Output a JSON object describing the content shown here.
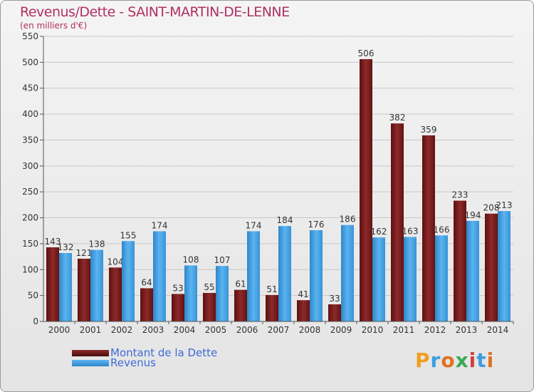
{
  "title": "Revenus/Dette - SAINT-MARTIN-DE-LENNE",
  "subtitle": "(en milliers d'€)",
  "logo": "Proxiti",
  "colors": {
    "dette": "#7a1a1a",
    "revenus": "#3d9ee0",
    "title": "#b03060",
    "legend_text": "#3d6bd6"
  },
  "chart_data": {
    "type": "bar",
    "categories": [
      "2000",
      "2001",
      "2002",
      "2003",
      "2004",
      "2005",
      "2006",
      "2007",
      "2008",
      "2009",
      "2010",
      "2011",
      "2012",
      "2013",
      "2014"
    ],
    "series": [
      {
        "name": "Montant de la Dette",
        "values": [
          143,
          121,
          104,
          64,
          53,
          55,
          61,
          51,
          41,
          33,
          506,
          382,
          359,
          233,
          208
        ]
      },
      {
        "name": "Revenus",
        "values": [
          132,
          138,
          155,
          174,
          108,
          107,
          174,
          184,
          176,
          186,
          162,
          163,
          166,
          194,
          213
        ]
      }
    ],
    "ylim": [
      0,
      550
    ],
    "yticks": [
      0,
      50,
      100,
      150,
      200,
      250,
      300,
      350,
      400,
      450,
      500,
      550
    ],
    "grid": true,
    "legend": "bottom-left"
  }
}
